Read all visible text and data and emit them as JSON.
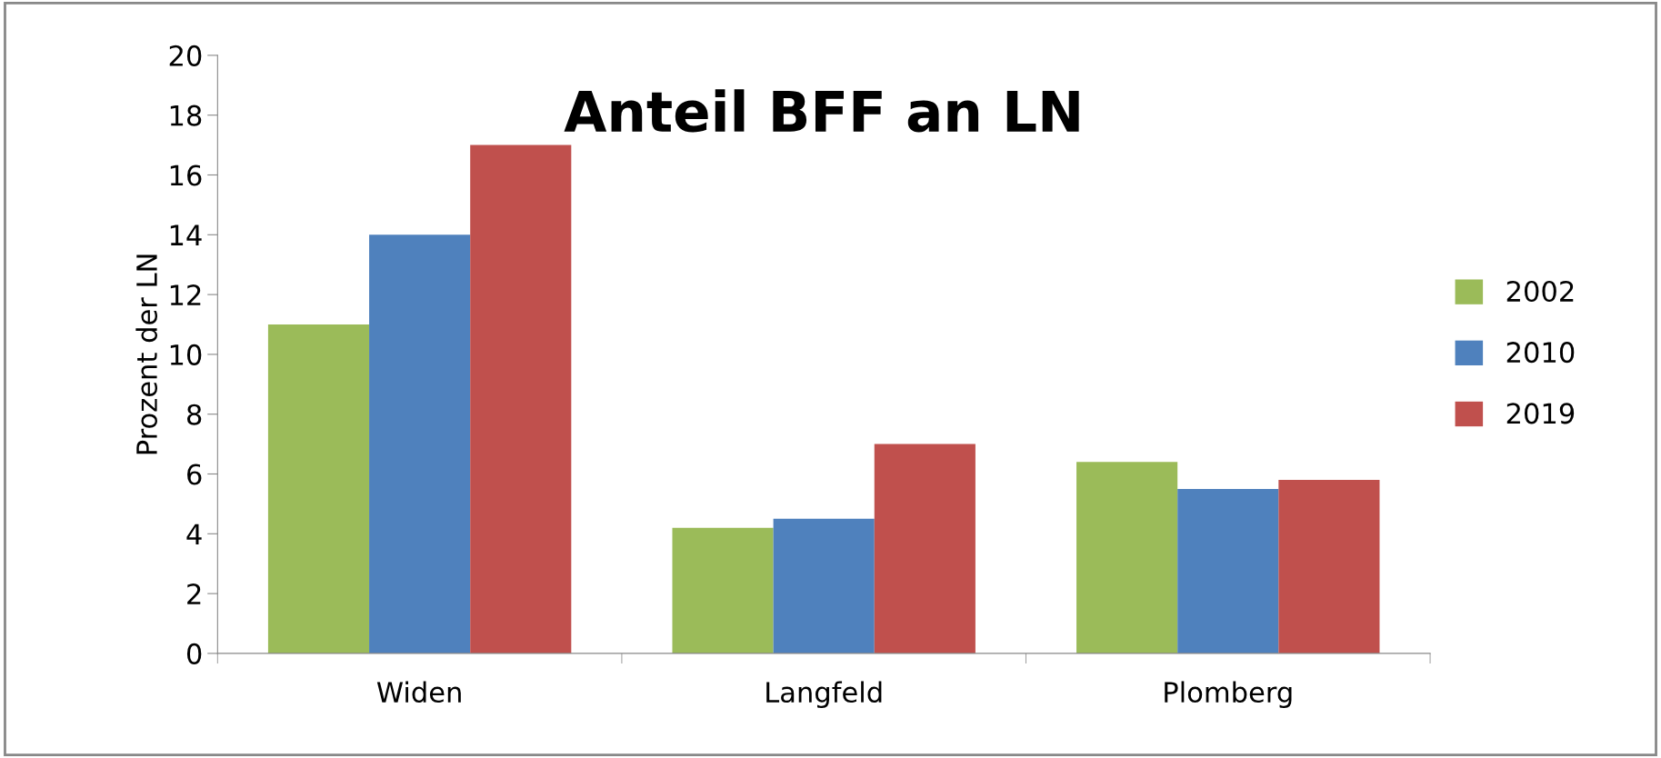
{
  "chart_data": {
    "type": "bar",
    "title": "Anteil BFF an LN",
    "ylabel": "Prozent der LN",
    "categories": [
      "Widen",
      "Langfeld",
      "Plomberg"
    ],
    "series": [
      {
        "name": "2002",
        "color": "#9bbb59",
        "values": [
          11,
          4.2,
          6.4
        ]
      },
      {
        "name": "2010",
        "color": "#4f81bd",
        "values": [
          14,
          4.5,
          5.5
        ]
      },
      {
        "name": "2019",
        "color": "#c0504d",
        "values": [
          17,
          7,
          5.8
        ]
      }
    ],
    "ylim": [
      0,
      20
    ],
    "yticks": [
      0,
      2,
      4,
      6,
      8,
      10,
      12,
      14,
      16,
      18,
      20
    ],
    "grid": false,
    "legend": "right"
  }
}
